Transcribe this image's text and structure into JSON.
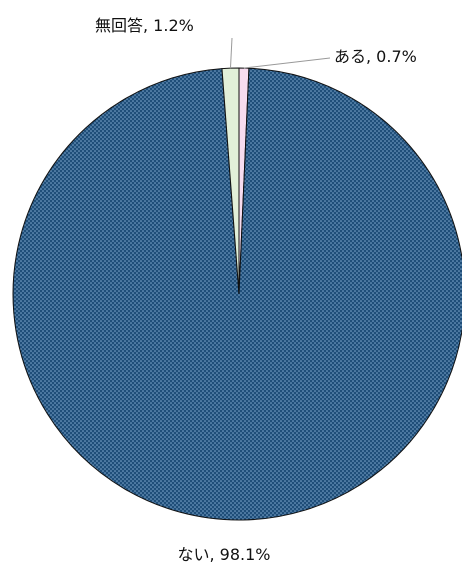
{
  "chart_data": {
    "type": "pie",
    "title": "",
    "slices": [
      {
        "label": "ある",
        "value": 0.7,
        "display": "ある, 0.7%",
        "color": "#f7dcef"
      },
      {
        "label": "ない",
        "value": 98.1,
        "display": "ない, 98.1%",
        "color": "#1f4e79",
        "pattern": "dots"
      },
      {
        "label": "無回答",
        "value": 1.2,
        "display": "無回答, 1.2%",
        "color": "#e2f0d9"
      }
    ],
    "start": "12 o'clock, clockwise",
    "legend": "none"
  }
}
